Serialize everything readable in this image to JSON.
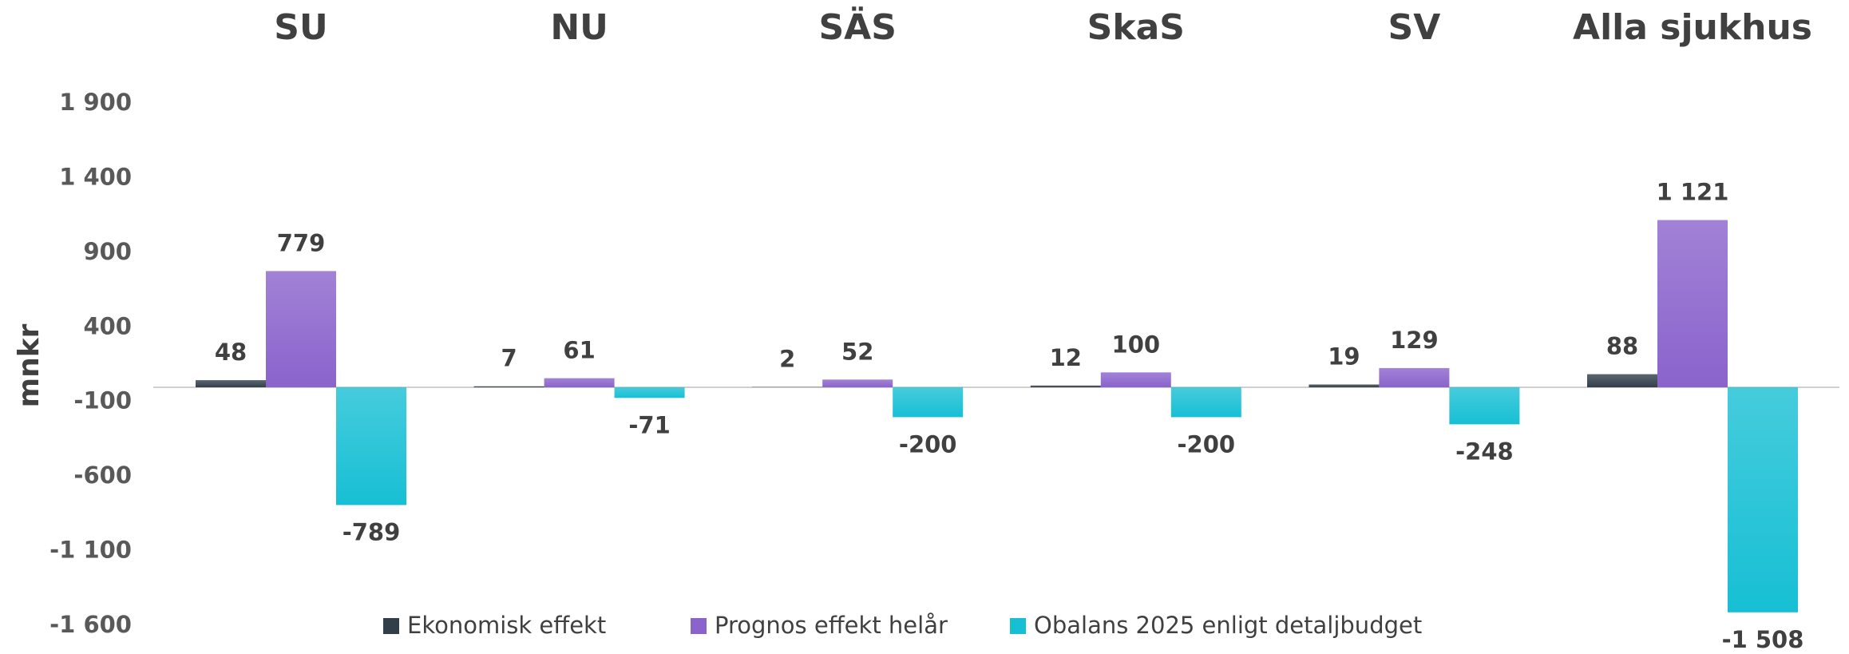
{
  "chart_data": {
    "type": "bar",
    "y_label": "mnkr",
    "categories": [
      "SU",
      "NU",
      "SÄS",
      "SkaS",
      "SV",
      "Alla sjukhus"
    ],
    "series": [
      {
        "name": "Ekonomisk effekt",
        "color": "#323f4b",
        "values": [
          48,
          7,
          2,
          12,
          19,
          88
        ]
      },
      {
        "name": "Prognos effekt helår",
        "color": "#8a63cc",
        "values": [
          779,
          61,
          52,
          100,
          129,
          1121
        ],
        "value_labels": [
          "779",
          "61",
          "52",
          "100",
          "129",
          "1 121"
        ]
      },
      {
        "name": "Obalans 2025 enligt detaljbudget",
        "color": "#17bfd4",
        "values": [
          -789,
          -71,
          -200,
          -200,
          -248,
          -1508
        ],
        "value_labels": [
          "-789",
          "-71",
          "-200",
          "-200",
          "-248",
          "-1 508"
        ]
      }
    ],
    "ylim": [
      -1600,
      1900
    ],
    "yticks": [
      {
        "value": 1900,
        "label": "1 900"
      },
      {
        "value": 1400,
        "label": "1 400"
      },
      900,
      400,
      -100,
      -600,
      {
        "value": -1100,
        "label": "-1 100"
      },
      {
        "value": -1600,
        "label": "-1 600"
      }
    ],
    "grid": false,
    "legend": "bottom"
  }
}
